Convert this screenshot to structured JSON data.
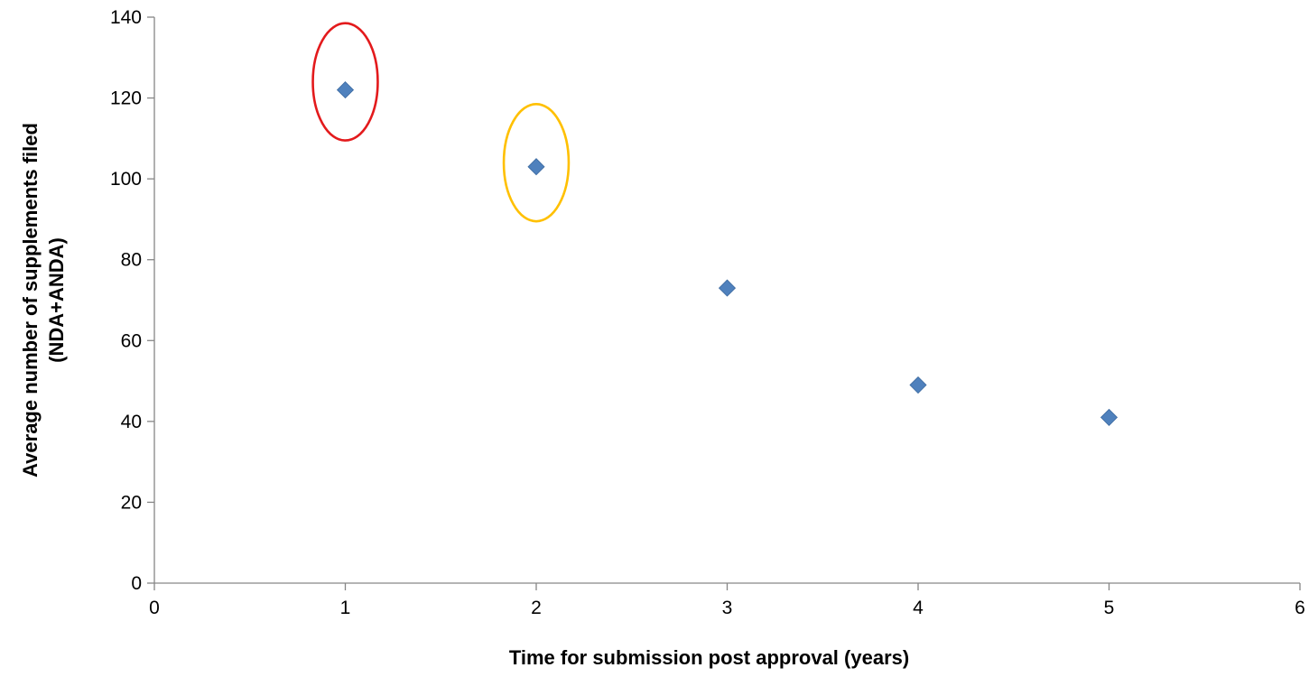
{
  "chart_data": {
    "type": "scatter",
    "title": "",
    "xlabel": "Time for submission post approval (years)",
    "ylabel_lines": [
      "Average number of supplements filed",
      "(NDA+ANDA)"
    ],
    "xlim": [
      0,
      6
    ],
    "ylim": [
      0,
      140
    ],
    "x_ticks": [
      0,
      1,
      2,
      3,
      4,
      5,
      6
    ],
    "y_ticks": [
      0,
      20,
      40,
      60,
      80,
      100,
      120,
      140
    ],
    "grid": false,
    "legend": "none",
    "series": [
      {
        "marker": "diamond",
        "color": "#4f81bd",
        "x": [
          1,
          2,
          3,
          4,
          5
        ],
        "y": [
          122,
          103,
          73,
          49,
          41
        ]
      }
    ],
    "highlights": [
      {
        "x": 1,
        "y": 124,
        "rx": 0.17,
        "ry": 14.5,
        "color": "#e31a1c"
      },
      {
        "x": 2,
        "y": 104,
        "rx": 0.17,
        "ry": 14.5,
        "color": "#ffc000"
      }
    ]
  }
}
